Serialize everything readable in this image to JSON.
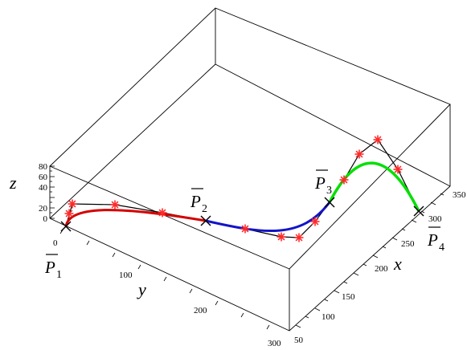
{
  "axes": {
    "z": {
      "label": "z",
      "ticks": [
        "80",
        "60",
        "40",
        "20",
        "0"
      ]
    },
    "y": {
      "label": "y",
      "ticks": [
        "0",
        "100",
        "200",
        "300"
      ]
    },
    "x": {
      "label": "x",
      "ticks": [
        "50",
        "100",
        "150",
        "200",
        "250",
        "300",
        "350"
      ]
    }
  },
  "points": [
    {
      "letter": "P",
      "sub": "1"
    },
    {
      "letter": "P",
      "sub": "2"
    },
    {
      "letter": "P",
      "sub": "3"
    },
    {
      "letter": "P",
      "sub": "4"
    }
  ],
  "segments": [
    {
      "color": "#d40000"
    },
    {
      "color": "#1414c8"
    },
    {
      "color": "#00e000"
    }
  ],
  "colors": {
    "marker": "#ff2a2a",
    "control": "#000000",
    "box": "#000000"
  }
}
